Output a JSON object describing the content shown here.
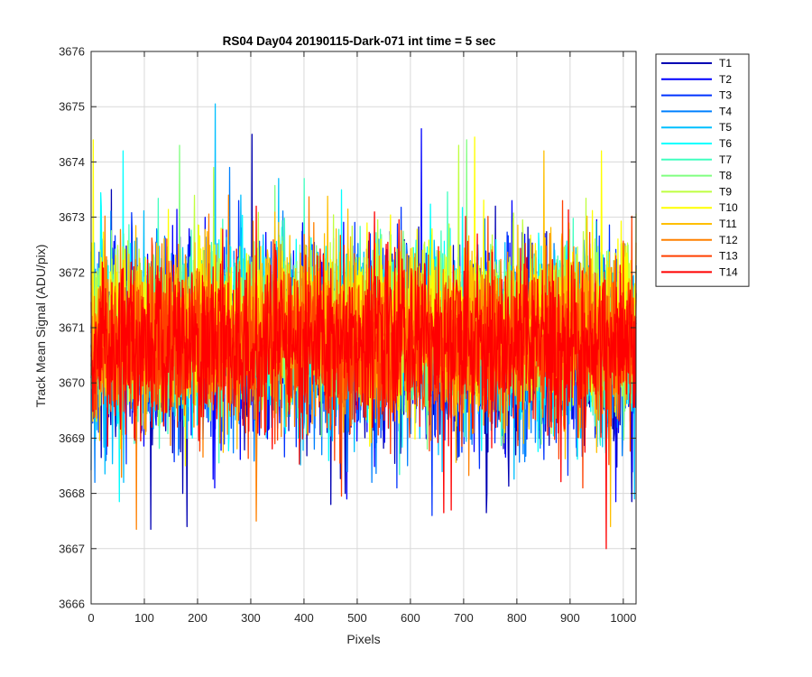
{
  "chart_data": {
    "type": "line",
    "title": "RS04 Day04 20190115-Dark-071 int time = 5 sec",
    "xlabel": "Pixels",
    "ylabel": "Track Mean Signal (ADU/pix)",
    "xlim": [
      0,
      1024
    ],
    "ylim": [
      3666,
      3676
    ],
    "xticks": [
      0,
      100,
      200,
      300,
      400,
      500,
      600,
      700,
      800,
      900,
      1000
    ],
    "yticks": [
      3666,
      3667,
      3668,
      3669,
      3670,
      3671,
      3672,
      3673,
      3674,
      3675,
      3676
    ],
    "grid": true,
    "legend_position": "outside-top-right",
    "n_points_per_series": 1024,
    "series": [
      {
        "name": "T1",
        "color": "#0000b3",
        "mean": 3670.6,
        "std": 0.85,
        "spikes": [
          {
            "x": 302,
            "y": 3674.5
          },
          {
            "x": 38,
            "y": 3673.5
          },
          {
            "x": 112,
            "y": 3667.35
          },
          {
            "x": 180,
            "y": 3667.4
          },
          {
            "x": 450,
            "y": 3667.8
          },
          {
            "x": 742,
            "y": 3667.65
          },
          {
            "x": 1015,
            "y": 3667.85
          }
        ]
      },
      {
        "name": "T2",
        "color": "#0000ff",
        "mean": 3670.7,
        "std": 0.85,
        "spikes": [
          {
            "x": 620,
            "y": 3674.6
          },
          {
            "x": 480,
            "y": 3667.9
          },
          {
            "x": 985,
            "y": 3667.85
          }
        ]
      },
      {
        "name": "T3",
        "color": "#0033ff",
        "mean": 3670.7,
        "std": 0.85,
        "spikes": [
          {
            "x": 640,
            "y": 3667.6
          },
          {
            "x": 700,
            "y": 3668.9
          }
        ]
      },
      {
        "name": "T4",
        "color": "#0080ff",
        "mean": 3670.8,
        "std": 0.8,
        "spikes": [
          {
            "x": 260,
            "y": 3673.9
          },
          {
            "x": 480,
            "y": 3668.4
          }
        ]
      },
      {
        "name": "T5",
        "color": "#00bfff",
        "mean": 3670.8,
        "std": 0.8,
        "spikes": [
          {
            "x": 233,
            "y": 3675.05
          },
          {
            "x": 352,
            "y": 3673.7
          },
          {
            "x": 1020,
            "y": 3667.9
          }
        ]
      },
      {
        "name": "T6",
        "color": "#00ffff",
        "mean": 3670.9,
        "std": 0.75,
        "spikes": [
          {
            "x": 60,
            "y": 3674.2
          },
          {
            "x": 53,
            "y": 3667.85
          }
        ]
      },
      {
        "name": "T7",
        "color": "#40ffbf",
        "mean": 3670.9,
        "std": 0.75,
        "spikes": [
          {
            "x": 400,
            "y": 3673.7
          }
        ]
      },
      {
        "name": "T8",
        "color": "#80ff80",
        "mean": 3671.0,
        "std": 0.7,
        "spikes": [
          {
            "x": 166,
            "y": 3674.3
          },
          {
            "x": 705,
            "y": 3674.4
          }
        ]
      },
      {
        "name": "T9",
        "color": "#bfff40",
        "mean": 3671.1,
        "std": 0.7,
        "spikes": [
          {
            "x": 690,
            "y": 3674.3
          },
          {
            "x": 230,
            "y": 3673.9
          }
        ]
      },
      {
        "name": "T10",
        "color": "#ffff00",
        "mean": 3671.1,
        "std": 0.7,
        "spikes": [
          {
            "x": 4,
            "y": 3674.4
          },
          {
            "x": 720,
            "y": 3674.45
          },
          {
            "x": 958,
            "y": 3674.2
          }
        ]
      },
      {
        "name": "T11",
        "color": "#ffbf00",
        "mean": 3670.9,
        "std": 0.75,
        "spikes": [
          {
            "x": 850,
            "y": 3674.2
          },
          {
            "x": 975,
            "y": 3667.4
          }
        ]
      },
      {
        "name": "T12",
        "color": "#ff8000",
        "mean": 3670.8,
        "std": 0.8,
        "spikes": [
          {
            "x": 310,
            "y": 3667.5
          },
          {
            "x": 85,
            "y": 3667.35
          }
        ]
      },
      {
        "name": "T13",
        "color": "#ff4000",
        "mean": 3670.7,
        "std": 0.8,
        "spikes": [
          {
            "x": 885,
            "y": 3673.3
          },
          {
            "x": 470,
            "y": 3667.95
          }
        ]
      },
      {
        "name": "T14",
        "color": "#ff0000",
        "mean": 3670.7,
        "std": 0.75,
        "spikes": [
          {
            "x": 967,
            "y": 3667.0
          },
          {
            "x": 662,
            "y": 3667.65
          },
          {
            "x": 676,
            "y": 3667.7
          },
          {
            "x": 310,
            "y": 3673.2
          }
        ]
      }
    ]
  }
}
